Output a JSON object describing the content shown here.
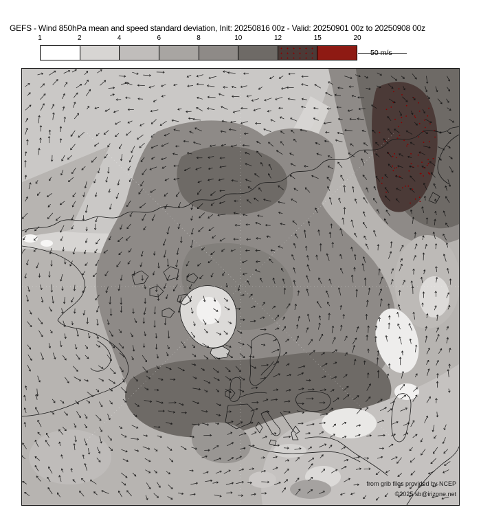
{
  "title": "GEFS - Wind 850hPa mean and speed standard deviation, Init: 20250816 00z - Valid: 20250901 00z to 20250908 00z",
  "colorbar": {
    "tick_labels": [
      "1",
      "2",
      "4",
      "6",
      "8",
      "10",
      "12",
      "15",
      "20"
    ],
    "cell_colors": [
      "#ffffff",
      "#d7d5d3",
      "#c0bdbb",
      "#a8a5a2",
      "#8e8a87",
      "#6e6a66",
      "#4b3a37",
      "#8e1a13"
    ],
    "stipple_cell_index": 6,
    "stipple_dot_color": "#8b0000"
  },
  "quiver_key": {
    "label": "50 m/s"
  },
  "attribution": {
    "line1": "from grib files provided by NCEP",
    "line2": "©2025 sb@irizone.net"
  },
  "map_palette": {
    "base": "#b7b4b1",
    "light": "#cac8c6",
    "lighter": "#d8d6d4",
    "near_white": "#f2f1f0",
    "mid_dark": "#8e8a87",
    "dark": "#6e6a66",
    "maroon": "#4b3a37",
    "coastline": "#1c1c1c",
    "arrow": "#141414"
  },
  "chart_data": {
    "type": "heatmap",
    "subtype": "filled contour map with quiver (wind arrows)",
    "title": "GEFS - Wind 850hPa mean and speed standard deviation",
    "model": "GEFS",
    "level": "850hPa",
    "init": "20250816 00z",
    "valid_from": "20250901 00z",
    "valid_to": "20250908 00z",
    "units": "m/s",
    "projection": "north polar stereographic",
    "color_scale_levels": [
      1,
      2,
      4,
      6,
      8,
      10,
      12,
      15,
      20
    ],
    "color_scale_colors": [
      "#ffffff",
      "#d7d5d3",
      "#c0bdbb",
      "#a8a5a2",
      "#8e8a87",
      "#6e6a66",
      "#4b3a37",
      "#8e1a13"
    ],
    "reference_arrow_m_s": 50,
    "legend_position": "top, horizontal colorbar",
    "notable_features": [
      "Absolute maximum of speed standard deviation (12-15 m/s, red-stippled dark maroon core) over the northwest Pacific near Kamchatka (upper right of map)",
      "Secondary maximum (10-12 m/s) over the East Siberian Arctic (top center)",
      "Broad 8-12 m/s band across the central Arctic, North Atlantic, Iceland and the Norwegian Sea / Scandinavia",
      "Low variability (1-4 m/s) in the subtropical corners, over Greenland and eastern Europe",
      "Mean wind arrows show circumpolar westerly flow with easterly trades near the map corners"
    ]
  }
}
